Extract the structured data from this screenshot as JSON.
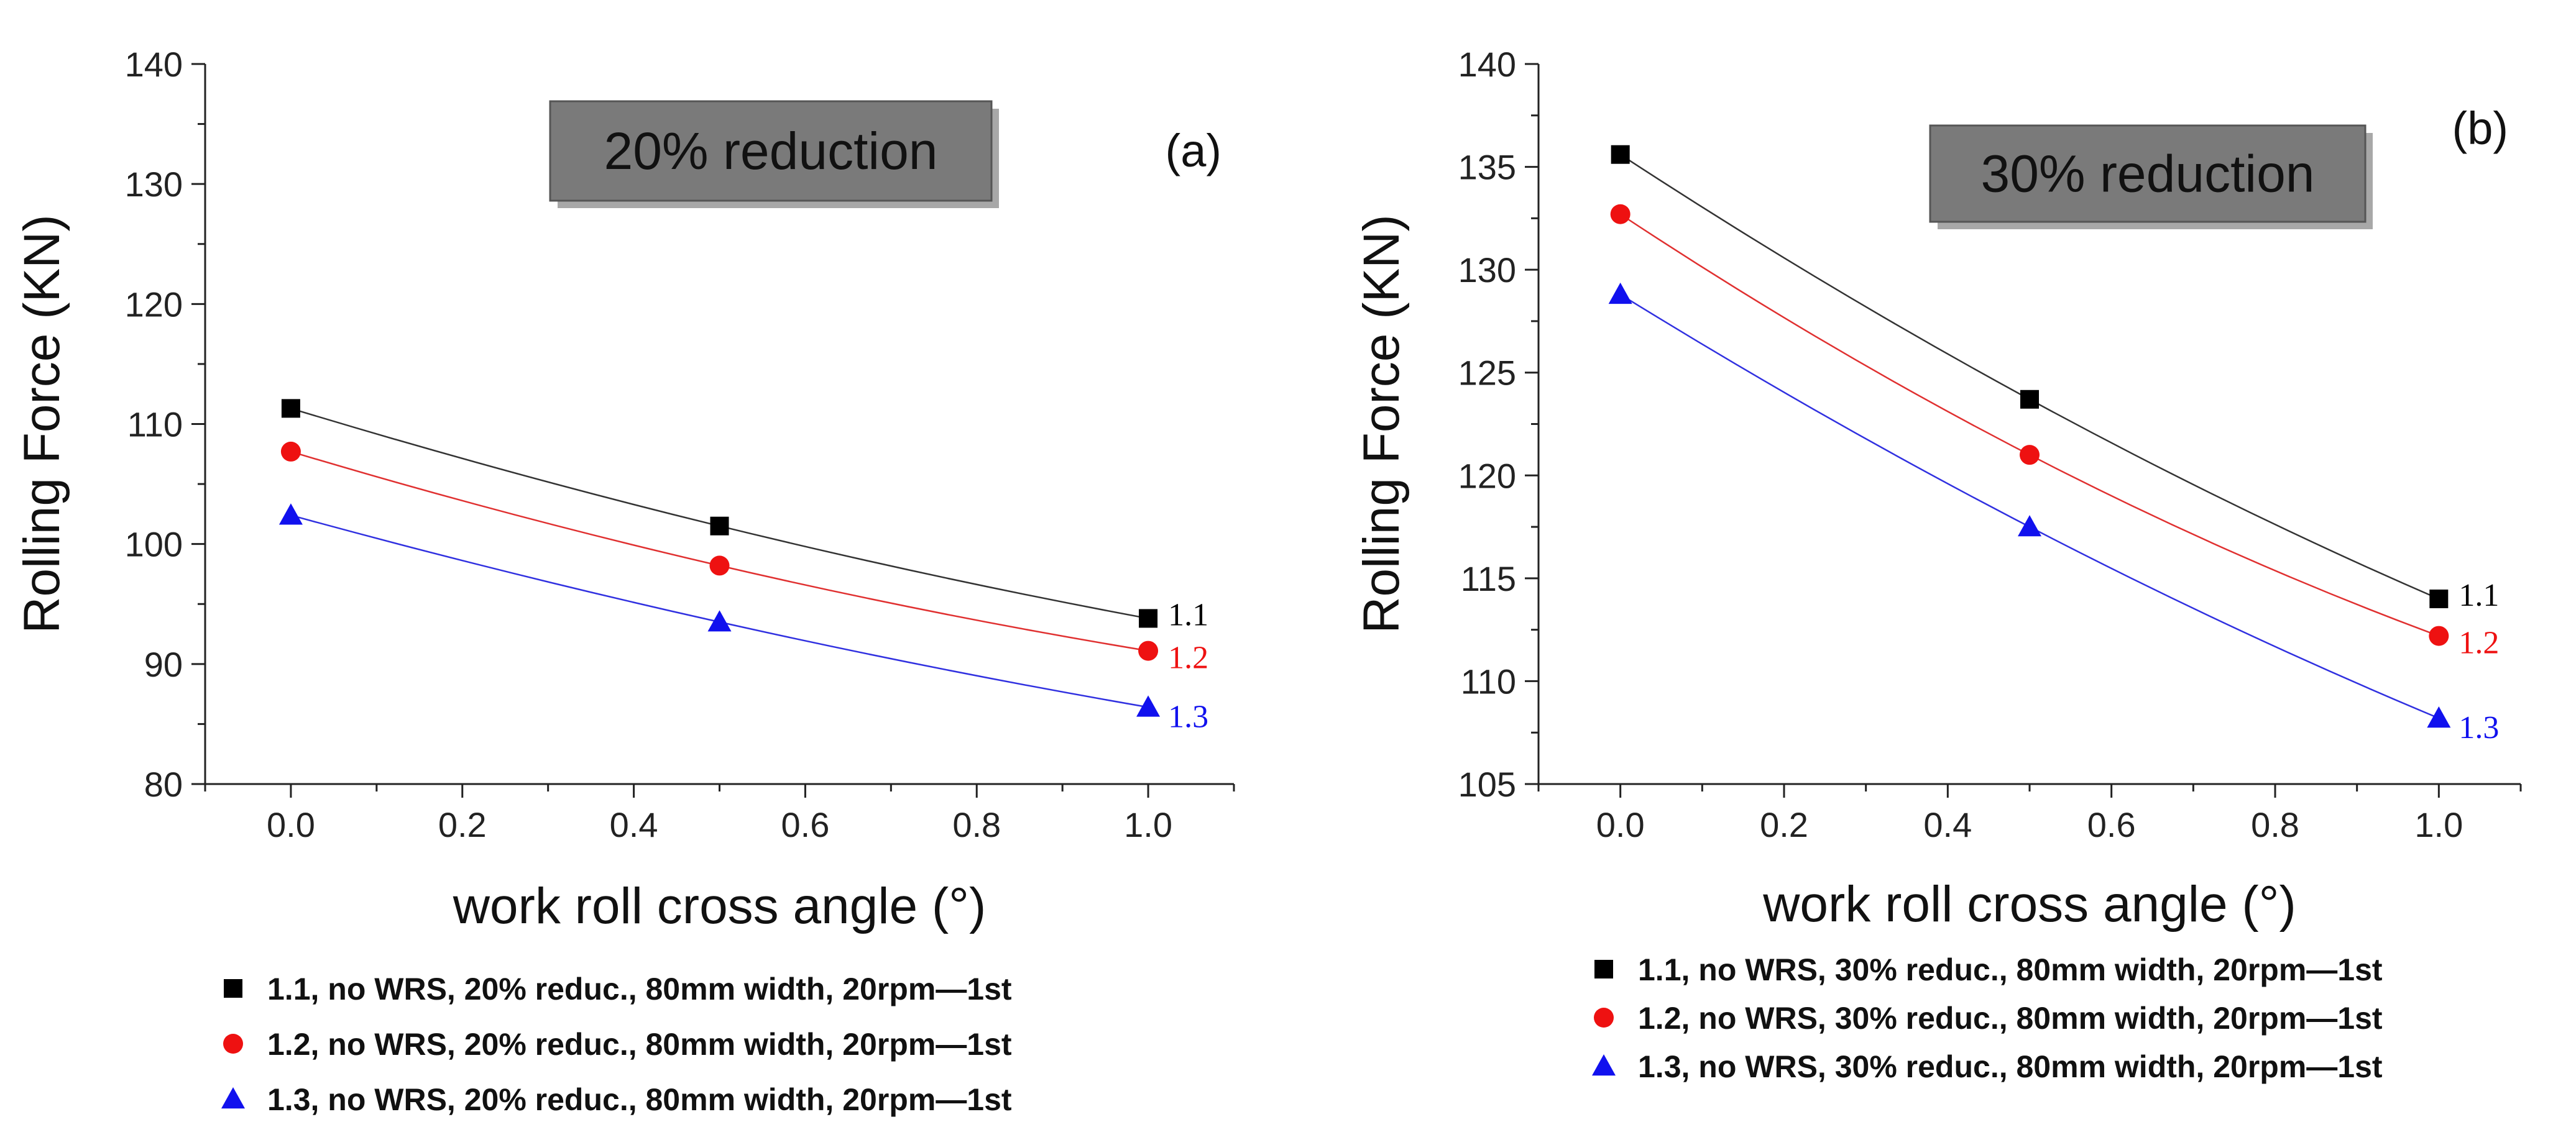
{
  "chart_data": [
    {
      "type": "line",
      "panel_label": "(a)",
      "box_label": "20% reduction",
      "xlabel": "work roll cross angle (°)",
      "ylabel": "Rolling Force (KN)",
      "xlim": [
        -0.1,
        1.1
      ],
      "ylim": [
        80,
        140
      ],
      "xticks": [
        0.0,
        0.2,
        0.4,
        0.6,
        0.8,
        1.0
      ],
      "xtick_labels": [
        "0.0",
        "0.2",
        "0.4",
        "0.6",
        "0.8",
        "1.0"
      ],
      "yticks": [
        80,
        90,
        100,
        110,
        120,
        130,
        140
      ],
      "ytick_labels": [
        "80",
        "90",
        "100",
        "110",
        "120",
        "130",
        "140"
      ],
      "x": [
        0.0,
        0.5,
        1.0
      ],
      "series": [
        {
          "name": "1.1, no WRS, 20% reduc., 80mm width, 20rpm—1st",
          "end_label": "1.1",
          "marker": "square",
          "color": "#000000",
          "line_color": "#333333",
          "values": [
            111.3,
            101.5,
            93.8
          ]
        },
        {
          "name": "1.2, no WRS, 20% reduc., 80mm width, 20rpm—1st",
          "end_label": "1.2",
          "marker": "circle",
          "color": "#ee1111",
          "line_color": "#e03030",
          "values": [
            107.7,
            98.2,
            91.1
          ]
        },
        {
          "name": "1.3, no WRS, 20% reduc., 80mm width, 20rpm—1st",
          "end_label": "1.3",
          "marker": "triangle",
          "color": "#1111ee",
          "line_color": "#3030e0",
          "values": [
            102.4,
            93.5,
            86.4
          ]
        }
      ]
    },
    {
      "type": "line",
      "panel_label": "(b)",
      "box_label": "30% reduction",
      "xlabel": "work roll cross angle (°)",
      "ylabel": "Rolling Force (KN)",
      "xlim": [
        -0.1,
        1.1
      ],
      "ylim": [
        105,
        140
      ],
      "xticks": [
        0.0,
        0.2,
        0.4,
        0.6,
        0.8,
        1.0
      ],
      "xtick_labels": [
        "0.0",
        "0.2",
        "0.4",
        "0.6",
        "0.8",
        "1.0"
      ],
      "yticks": [
        105,
        110,
        115,
        120,
        125,
        130,
        135,
        140
      ],
      "ytick_labels": [
        "105",
        "110",
        "115",
        "120",
        "125",
        "130",
        "135",
        "140"
      ],
      "x": [
        0.0,
        0.5,
        1.0
      ],
      "series": [
        {
          "name": "1.1, no WRS, 30% reduc., 80mm width, 20rpm—1st",
          "end_label": "1.1",
          "marker": "square",
          "color": "#000000",
          "line_color": "#333333",
          "values": [
            135.6,
            123.7,
            114.0
          ]
        },
        {
          "name": "1.2, no WRS, 30% reduc., 80mm width, 20rpm—1st",
          "end_label": "1.2",
          "marker": "circle",
          "color": "#ee1111",
          "line_color": "#e03030",
          "values": [
            132.7,
            121.0,
            112.2
          ]
        },
        {
          "name": "1.3, no WRS, 30% reduc., 80mm width, 20rpm—1st",
          "end_label": "1.3",
          "marker": "triangle",
          "color": "#1111ee",
          "line_color": "#3030e0",
          "values": [
            128.8,
            117.5,
            108.2
          ]
        }
      ]
    }
  ]
}
